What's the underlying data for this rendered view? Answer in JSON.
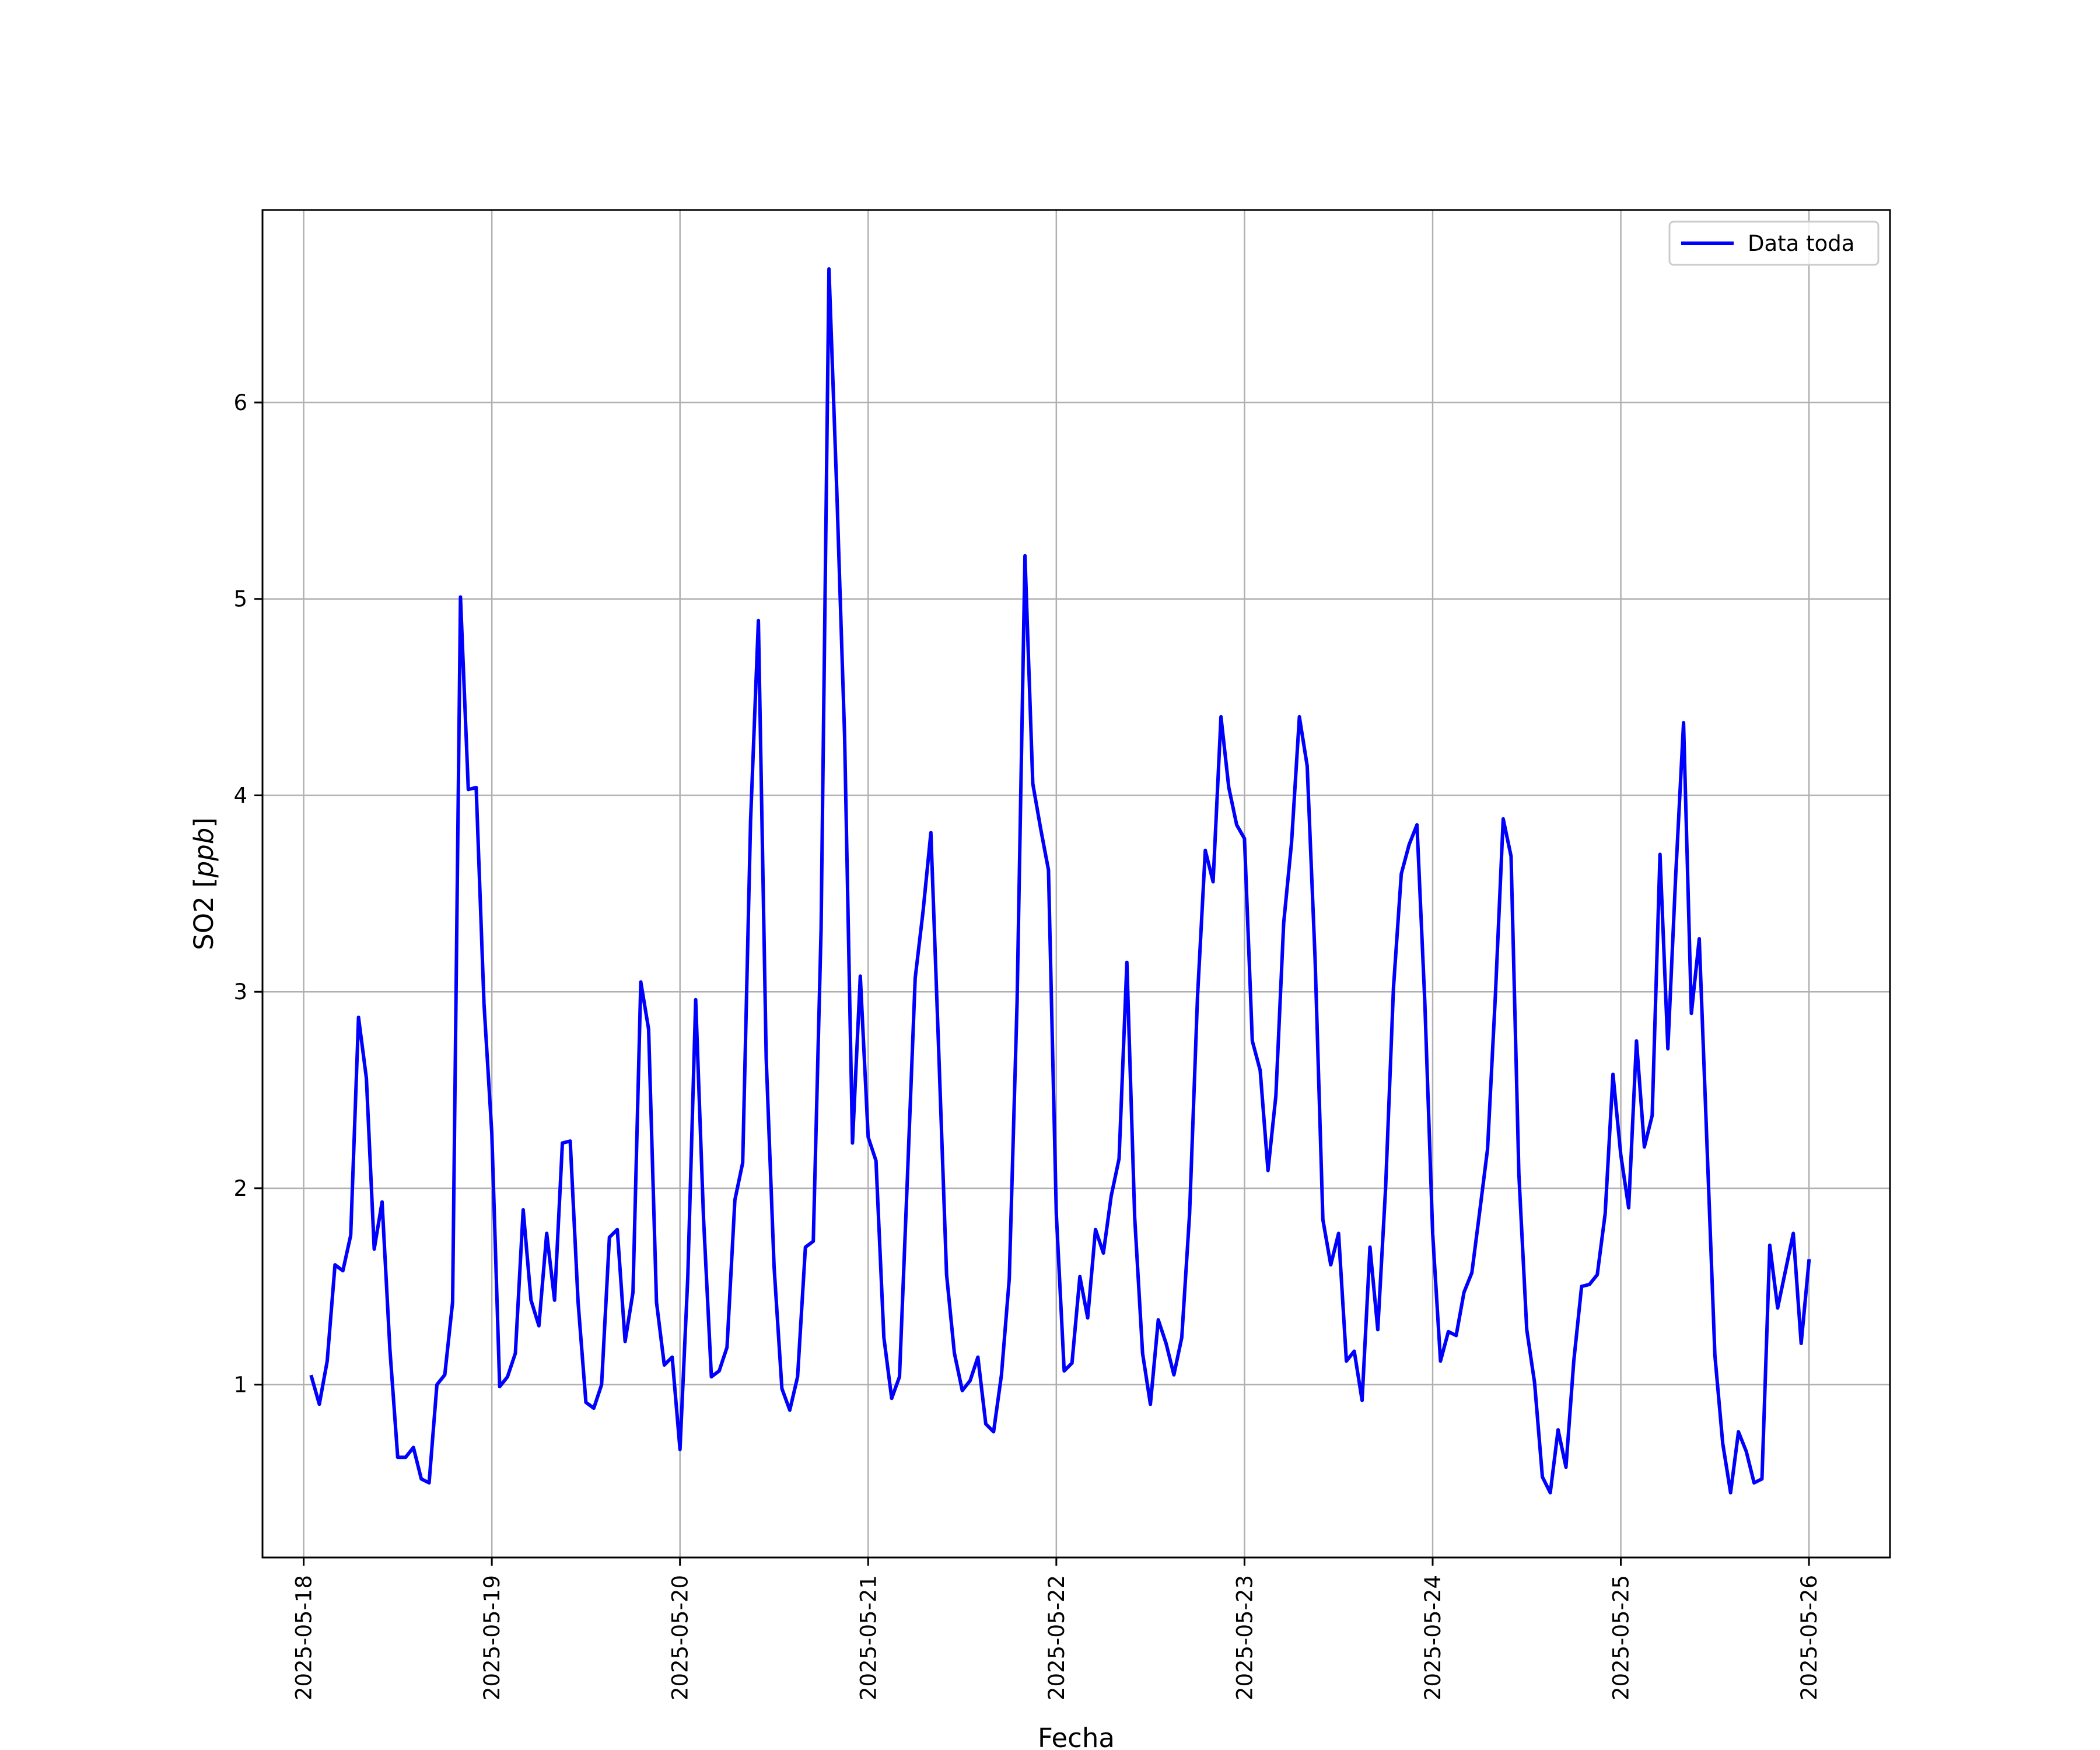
{
  "chart_data": {
    "type": "line",
    "title": "",
    "xlabel": "Fecha",
    "ylabel": {
      "prefix": "SO2 [",
      "unit": "ppb",
      "suffix": "]"
    },
    "x_ticks": [
      "2025-05-18",
      "2025-05-19",
      "2025-05-20",
      "2025-05-21",
      "2025-05-22",
      "2025-05-23",
      "2025-05-24",
      "2025-05-25",
      "2025-05-26"
    ],
    "y_ticks": [
      1,
      2,
      3,
      4,
      5,
      6
    ],
    "xlim": [
      "2025-05-17T18:45",
      "2025-05-26T10:20"
    ],
    "ylim": [
      0.12,
      6.98
    ],
    "grid": true,
    "legend_position": "top-right",
    "colors": {
      "series": "#0000ff",
      "grid": "#b0b0b0",
      "axes": "#000000"
    },
    "series": [
      {
        "name": "Data toda",
        "x": [
          "2025-05-18T01:00",
          "2025-05-18T02:00",
          "2025-05-18T03:00",
          "2025-05-18T04:00",
          "2025-05-18T05:00",
          "2025-05-18T06:00",
          "2025-05-18T07:00",
          "2025-05-18T08:00",
          "2025-05-18T09:00",
          "2025-05-18T10:00",
          "2025-05-18T11:00",
          "2025-05-18T12:00",
          "2025-05-18T13:00",
          "2025-05-18T14:00",
          "2025-05-18T15:00",
          "2025-05-18T16:00",
          "2025-05-18T17:00",
          "2025-05-18T18:00",
          "2025-05-18T19:00",
          "2025-05-18T20:00",
          "2025-05-18T21:00",
          "2025-05-18T22:00",
          "2025-05-18T23:00",
          "2025-05-19T00:00",
          "2025-05-19T01:00",
          "2025-05-19T02:00",
          "2025-05-19T03:00",
          "2025-05-19T04:00",
          "2025-05-19T05:00",
          "2025-05-19T06:00",
          "2025-05-19T07:00",
          "2025-05-19T08:00",
          "2025-05-19T09:00",
          "2025-05-19T10:00",
          "2025-05-19T11:00",
          "2025-05-19T12:00",
          "2025-05-19T13:00",
          "2025-05-19T14:00",
          "2025-05-19T15:00",
          "2025-05-19T16:00",
          "2025-05-19T17:00",
          "2025-05-19T18:00",
          "2025-05-19T19:00",
          "2025-05-19T20:00",
          "2025-05-19T21:00",
          "2025-05-19T22:00",
          "2025-05-19T23:00",
          "2025-05-20T00:00",
          "2025-05-20T01:00",
          "2025-05-20T02:00",
          "2025-05-20T03:00",
          "2025-05-20T04:00",
          "2025-05-20T05:00",
          "2025-05-20T06:00",
          "2025-05-20T07:00",
          "2025-05-20T08:00",
          "2025-05-20T09:00",
          "2025-05-20T10:00",
          "2025-05-20T11:00",
          "2025-05-20T12:00",
          "2025-05-20T13:00",
          "2025-05-20T14:00",
          "2025-05-20T15:00",
          "2025-05-20T16:00",
          "2025-05-20T17:00",
          "2025-05-20T18:00",
          "2025-05-20T19:00",
          "2025-05-20T20:00",
          "2025-05-20T21:00",
          "2025-05-20T22:00",
          "2025-05-20T23:00",
          "2025-05-21T00:00",
          "2025-05-21T01:00",
          "2025-05-21T02:00",
          "2025-05-21T03:00",
          "2025-05-21T04:00",
          "2025-05-21T05:00",
          "2025-05-21T06:00",
          "2025-05-21T07:00",
          "2025-05-21T08:00",
          "2025-05-21T09:00",
          "2025-05-21T10:00",
          "2025-05-21T11:00",
          "2025-05-21T12:00",
          "2025-05-21T13:00",
          "2025-05-21T14:00",
          "2025-05-21T15:00",
          "2025-05-21T16:00",
          "2025-05-21T17:00",
          "2025-05-21T18:00",
          "2025-05-21T19:00",
          "2025-05-21T20:00",
          "2025-05-21T21:00",
          "2025-05-21T22:00",
          "2025-05-21T23:00",
          "2025-05-22T00:00",
          "2025-05-22T01:00",
          "2025-05-22T02:00",
          "2025-05-22T03:00",
          "2025-05-22T04:00",
          "2025-05-22T05:00",
          "2025-05-22T06:00",
          "2025-05-22T07:00",
          "2025-05-22T08:00",
          "2025-05-22T09:00",
          "2025-05-22T10:00",
          "2025-05-22T11:00",
          "2025-05-22T12:00",
          "2025-05-22T13:00",
          "2025-05-22T14:00",
          "2025-05-22T15:00",
          "2025-05-22T16:00",
          "2025-05-22T17:00",
          "2025-05-22T18:00",
          "2025-05-22T19:00",
          "2025-05-22T20:00",
          "2025-05-22T21:00",
          "2025-05-22T22:00",
          "2025-05-22T23:00",
          "2025-05-23T00:00",
          "2025-05-23T01:00",
          "2025-05-23T02:00",
          "2025-05-23T03:00",
          "2025-05-23T04:00",
          "2025-05-23T05:00",
          "2025-05-23T06:00",
          "2025-05-23T07:00",
          "2025-05-23T08:00",
          "2025-05-23T09:00",
          "2025-05-23T10:00",
          "2025-05-23T11:00",
          "2025-05-23T12:00",
          "2025-05-23T13:00",
          "2025-05-23T14:00",
          "2025-05-23T15:00",
          "2025-05-23T16:00",
          "2025-05-23T17:00",
          "2025-05-23T18:00",
          "2025-05-23T19:00",
          "2025-05-23T20:00",
          "2025-05-23T21:00",
          "2025-05-23T22:00",
          "2025-05-23T23:00",
          "2025-05-24T00:00",
          "2025-05-24T01:00",
          "2025-05-24T02:00",
          "2025-05-24T03:00",
          "2025-05-24T04:00",
          "2025-05-24T05:00",
          "2025-05-24T06:00",
          "2025-05-24T07:00",
          "2025-05-24T08:00",
          "2025-05-24T09:00",
          "2025-05-24T10:00",
          "2025-05-24T11:00",
          "2025-05-24T12:00",
          "2025-05-24T13:00",
          "2025-05-24T14:00",
          "2025-05-24T15:00",
          "2025-05-24T16:00",
          "2025-05-24T17:00",
          "2025-05-24T18:00",
          "2025-05-24T19:00",
          "2025-05-24T20:00",
          "2025-05-24T21:00",
          "2025-05-24T22:00",
          "2025-05-24T23:00",
          "2025-05-25T00:00",
          "2025-05-25T01:00",
          "2025-05-25T02:00",
          "2025-05-25T03:00",
          "2025-05-25T04:00",
          "2025-05-25T05:00",
          "2025-05-25T06:00",
          "2025-05-25T07:00",
          "2025-05-25T08:00",
          "2025-05-25T09:00",
          "2025-05-25T10:00",
          "2025-05-25T11:00",
          "2025-05-25T12:00",
          "2025-05-25T13:00",
          "2025-05-25T14:00",
          "2025-05-25T15:00",
          "2025-05-25T16:00",
          "2025-05-25T17:00",
          "2025-05-25T18:00",
          "2025-05-25T19:00",
          "2025-05-25T20:00",
          "2025-05-25T21:00",
          "2025-05-25T22:00",
          "2025-05-25T23:00",
          "2025-05-26T00:00"
        ],
        "y": [
          1.04,
          0.9,
          1.12,
          1.61,
          1.58,
          1.76,
          2.87,
          2.56,
          1.69,
          1.93,
          1.18,
          0.63,
          0.63,
          0.68,
          0.52,
          0.5,
          1.0,
          1.05,
          1.42,
          5.01,
          4.03,
          4.04,
          2.94,
          2.28,
          0.99,
          1.04,
          1.16,
          1.89,
          1.43,
          1.3,
          1.77,
          1.43,
          2.23,
          2.24,
          1.42,
          0.91,
          0.88,
          1.0,
          1.75,
          1.79,
          1.22,
          1.47,
          3.05,
          2.81,
          1.42,
          1.1,
          1.14,
          0.67,
          1.55,
          2.96,
          1.85,
          1.04,
          1.07,
          1.19,
          1.94,
          2.13,
          3.87,
          4.89,
          2.66,
          1.6,
          0.98,
          0.87,
          1.04,
          1.7,
          1.73,
          3.32,
          6.68,
          5.55,
          4.3,
          2.23,
          3.08,
          2.26,
          2.14,
          1.24,
          0.93,
          1.04,
          2.05,
          3.07,
          3.41,
          3.81,
          2.7,
          1.56,
          1.16,
          0.97,
          1.02,
          1.14,
          0.8,
          0.76,
          1.05,
          1.54,
          2.95,
          5.22,
          4.06,
          3.83,
          3.62,
          1.87,
          1.07,
          1.11,
          1.55,
          1.34,
          1.79,
          1.67,
          1.96,
          2.15,
          3.15,
          1.85,
          1.16,
          0.9,
          1.33,
          1.21,
          1.05,
          1.24,
          1.87,
          2.97,
          3.72,
          3.56,
          4.4,
          4.04,
          3.85,
          3.78,
          2.75,
          2.6,
          2.09,
          2.47,
          3.35,
          3.76,
          4.4,
          4.15,
          3.17,
          1.84,
          1.61,
          1.77,
          1.12,
          1.17,
          0.92,
          1.7,
          1.28,
          2.0,
          3.02,
          3.6,
          3.75,
          3.85,
          2.95,
          1.77,
          1.12,
          1.27,
          1.25,
          1.47,
          1.57,
          1.88,
          2.2,
          2.98,
          3.88,
          3.69,
          2.07,
          1.28,
          1.01,
          0.53,
          0.45,
          0.77,
          0.58,
          1.12,
          1.5,
          1.51,
          1.56,
          1.87,
          2.58,
          2.17,
          1.9,
          2.75,
          2.21,
          2.37,
          3.7,
          2.71,
          3.59,
          4.37,
          2.89,
          3.27,
          2.21,
          1.15,
          0.7,
          0.45,
          0.76,
          0.66,
          0.5,
          0.52,
          1.71,
          1.39,
          1.58,
          1.77,
          1.21,
          1.63
        ]
      }
    ]
  }
}
